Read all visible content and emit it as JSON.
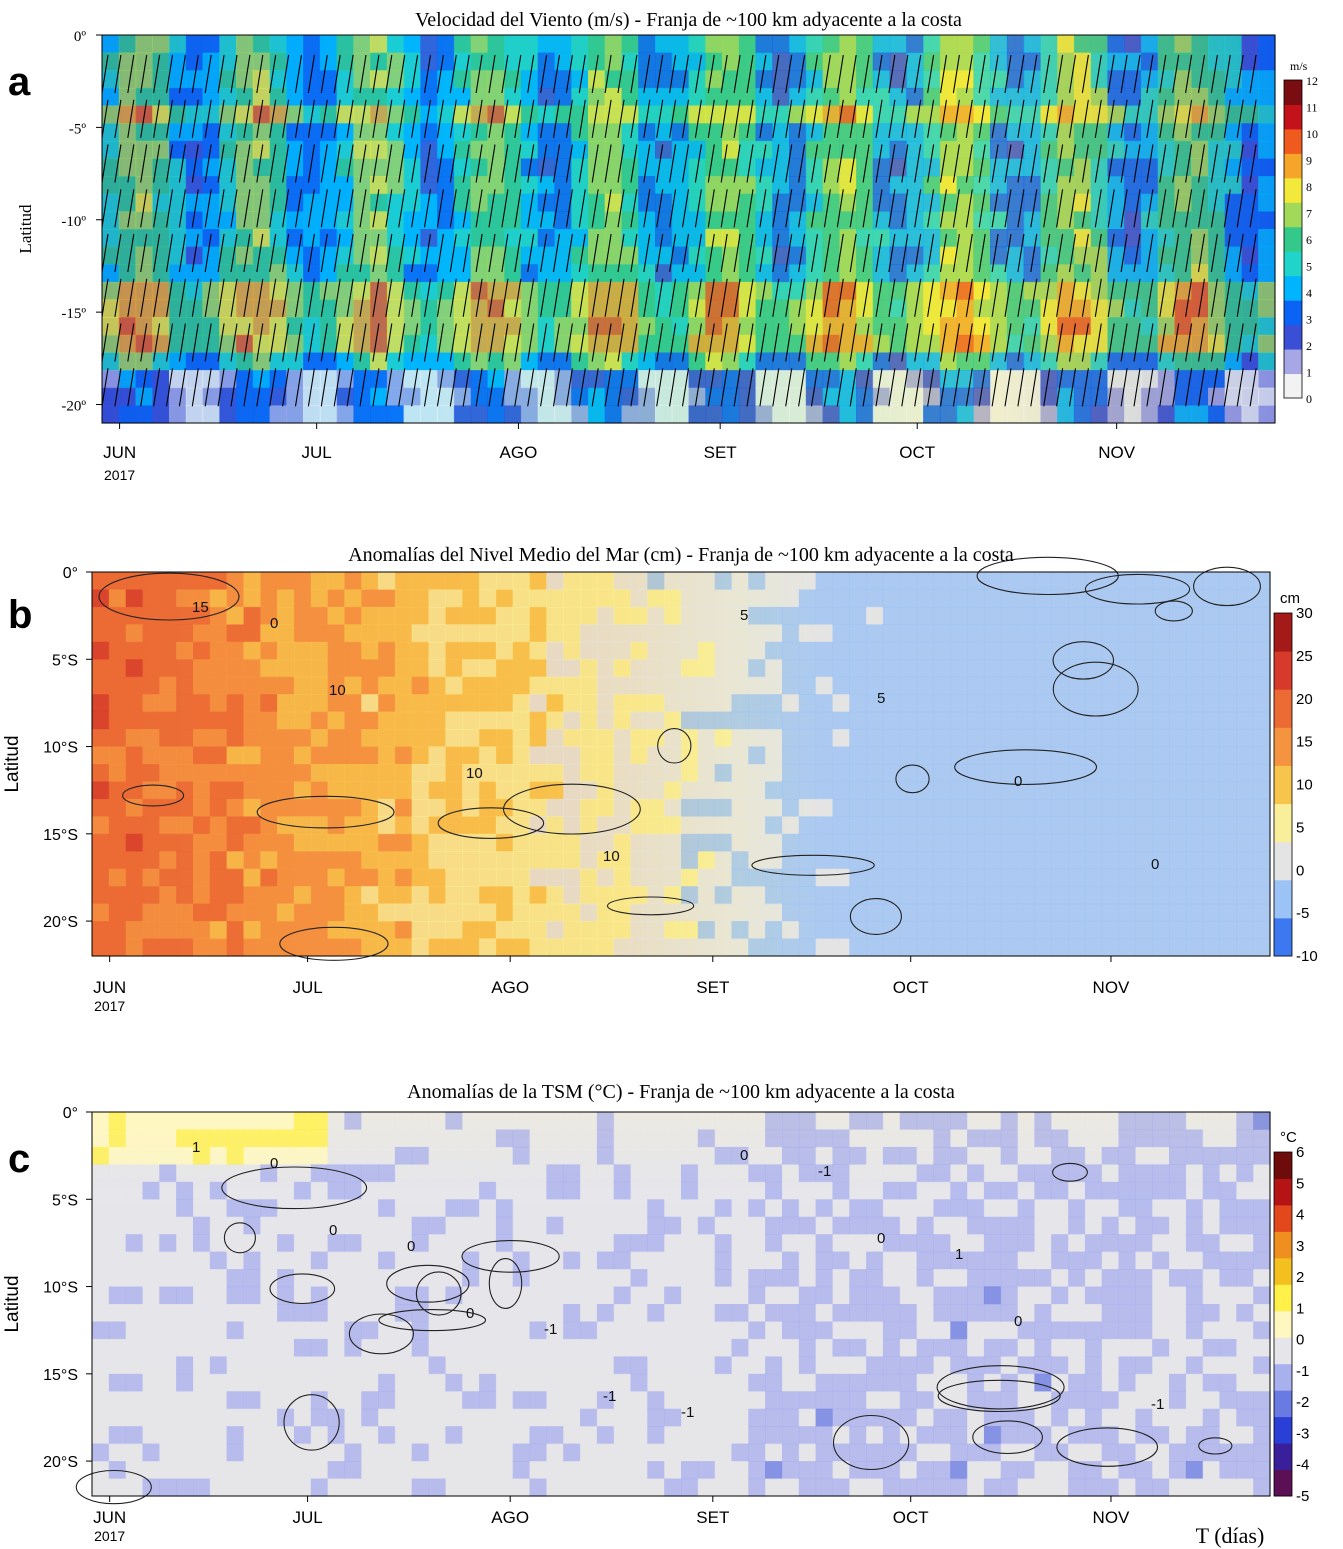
{
  "chart_data": [
    {
      "panel_letter": "a",
      "type": "heatmap",
      "title": "Velocidad del Viento (m/s) - Franja de ~100 km adyacente a la costa",
      "ylabel": "Latitud",
      "xlabel": "",
      "x_tick_labels": [
        "JUN",
        "JUL",
        "AGO",
        "SET",
        "OCT",
        "NOV"
      ],
      "x_year_label": "2017",
      "y_tick_labels": [
        "0º",
        "-5º",
        "-10º",
        "-15º",
        "-20º"
      ],
      "y_ticks": [
        0,
        -5,
        -10,
        -15,
        -20
      ],
      "ylim": [
        -21,
        0
      ],
      "colorbar_unit": "m/s",
      "colorbar_range": [
        0,
        12
      ],
      "colorbar_ticks": [
        "0",
        "1",
        "2",
        "3",
        "4",
        "5",
        "6",
        "7",
        "8",
        "9",
        "10",
        "11",
        "12"
      ],
      "colors": [
        "#f2f2f2",
        "#a7a7e6",
        "#3b4fd6",
        "#0b63f5",
        "#00b5ff",
        "#21d4c9",
        "#34c98a",
        "#a3d95a",
        "#f3e93a",
        "#f5a62a",
        "#ef5a1f",
        "#c3121a",
        "#7a0d12"
      ],
      "vectors": "wind direction arrows overlaid"
    },
    {
      "panel_letter": "b",
      "type": "heatmap",
      "title": "Anomalías del Nivel Medio del Mar (cm) - Franja de ~100 km adyacente a la costa",
      "ylabel": "Latitud",
      "xlabel": "",
      "x_tick_labels": [
        "JUN",
        "JUL",
        "AGO",
        "SET",
        "OCT",
        "NOV"
      ],
      "x_year_label": "2017",
      "y_tick_labels": [
        "0°",
        "5°S",
        "10°S",
        "15°S",
        "20°S"
      ],
      "y_ticks": [
        0,
        -5,
        -10,
        -15,
        -20
      ],
      "ylim": [
        -22,
        0
      ],
      "colorbar_unit": "cm",
      "colorbar_range": [
        -10,
        30
      ],
      "colorbar_ticks": [
        "-10",
        "-5",
        "0",
        "5",
        "10",
        "15",
        "20",
        "25",
        "30"
      ],
      "contour_labels": [
        "15",
        "10",
        "10",
        "10",
        "5",
        "5",
        "0",
        "0",
        "0"
      ],
      "colors": [
        "#3c78f0",
        "#9cc3f5",
        "#e4e4e4",
        "#f9ef9a",
        "#f8c54c",
        "#f59440",
        "#ec6a34",
        "#d53a2a",
        "#a31a18"
      ]
    },
    {
      "panel_letter": "c",
      "type": "heatmap",
      "title": "Anomalías de la TSM (°C) - Franja de ~100 km adyacente a la costa",
      "ylabel": "Latitud",
      "xlabel": "T (días)",
      "x_tick_labels": [
        "JUN",
        "JUL",
        "AGO",
        "SET",
        "OCT",
        "NOV"
      ],
      "x_year_label": "2017",
      "y_tick_labels": [
        "0°",
        "5°S",
        "10°S",
        "15°S",
        "20°S"
      ],
      "y_ticks": [
        0,
        -5,
        -10,
        -15,
        -20
      ],
      "ylim": [
        -22,
        0
      ],
      "colorbar_unit": "°C",
      "colorbar_range": [
        -5,
        6
      ],
      "colorbar_ticks": [
        "-5",
        "-4",
        "-3",
        "-2",
        "-1",
        "0",
        "1",
        "2",
        "3",
        "4",
        "5",
        "6"
      ],
      "contour_labels": [
        "1",
        "0",
        "0",
        "-1",
        "0",
        "0",
        "0",
        "-1",
        "0",
        "0",
        "-1",
        "-1",
        "-1",
        "1"
      ],
      "colors": [
        "#5b0f55",
        "#3a1f9b",
        "#2a3fd6",
        "#6a7ae3",
        "#a9b0ee",
        "#e6e6ea",
        "#fff7c0",
        "#fff04a",
        "#f4c020",
        "#ef8f20",
        "#e2481c",
        "#b51414",
        "#6e0c0c"
      ]
    }
  ],
  "panel_geometry_note": ""
}
